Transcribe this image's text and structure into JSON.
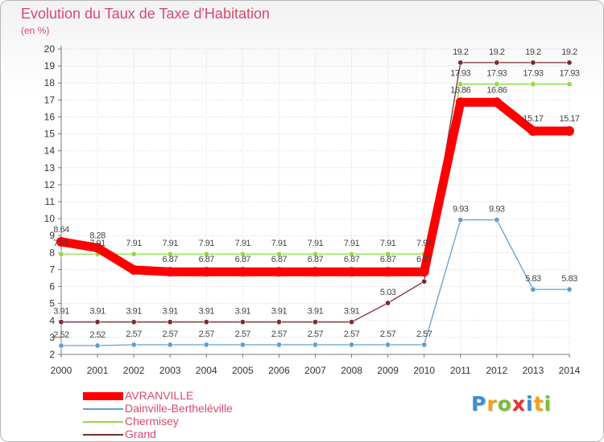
{
  "chart_data": {
    "type": "line",
    "title": "Evolution du Taux de Taxe d'Habitation",
    "subtitle": "(en %)",
    "categories": [
      "2000",
      "2001",
      "2002",
      "2003",
      "2004",
      "2005",
      "2006",
      "2007",
      "2008",
      "2009",
      "2010",
      "2011",
      "2012",
      "2013",
      "2014"
    ],
    "ylim": [
      2,
      20
    ],
    "yticks": [
      2,
      3,
      4,
      5,
      6,
      7,
      8,
      9,
      10,
      11,
      12,
      13,
      14,
      15,
      16,
      17,
      18,
      19,
      20
    ],
    "grid": true,
    "legend_position": "bottom-left",
    "series": [
      {
        "name": "AVRANVILLE",
        "color": "#ff0000",
        "values": [
          8.64,
          8.28,
          6.98,
          6.87,
          6.87,
          6.87,
          6.87,
          6.87,
          6.87,
          6.87,
          6.87,
          16.86,
          16.86,
          15.17,
          15.17
        ],
        "labels": [
          "8.64",
          "8.28",
          "",
          "6.87",
          "6.87",
          "6.87",
          "6.87",
          "6.87",
          "6.87",
          "6.87",
          "6.87",
          "16.86",
          "16.86",
          "15.17",
          "15.17"
        ]
      },
      {
        "name": "Dainville-Bertheléville",
        "color": "#5f9fd2",
        "values": [
          2.52,
          2.52,
          2.57,
          2.57,
          2.57,
          2.57,
          2.57,
          2.57,
          2.57,
          2.57,
          2.57,
          9.93,
          9.93,
          5.83,
          5.83
        ],
        "labels": [
          "2.52",
          "2.52",
          "2.57",
          "2.57",
          "2.57",
          "2.57",
          "2.57",
          "2.57",
          "2.57",
          "2.57",
          "2.57",
          "9.93",
          "9.93",
          "5.83",
          "5.83"
        ]
      },
      {
        "name": "Chermisey",
        "color": "#8edb47",
        "values": [
          7.91,
          7.91,
          7.91,
          7.91,
          7.91,
          7.91,
          7.91,
          7.91,
          7.91,
          7.91,
          7.91,
          17.93,
          17.93,
          17.93,
          17.93
        ],
        "labels": [
          "7.91",
          "7.91",
          "7.91",
          "7.91",
          "7.91",
          "7.91",
          "7.91",
          "7.91",
          "7.91",
          "7.91",
          "7.91",
          "17.93",
          "17.93",
          "17.93",
          "17.93"
        ]
      },
      {
        "name": "Grand",
        "color": "#7b2c33",
        "values": [
          3.91,
          3.91,
          3.91,
          3.91,
          3.91,
          3.91,
          3.91,
          3.91,
          3.91,
          5.03,
          6.3,
          19.2,
          19.2,
          19.2,
          19.2
        ],
        "labels": [
          "3.91",
          "3.91",
          "3.91",
          "3.91",
          "3.91",
          "3.91",
          "3.91",
          "3.91",
          "3.91",
          "5.03",
          "",
          "19.2",
          "19.2",
          "19.2",
          "19.2"
        ]
      }
    ]
  },
  "logo": {
    "text": "Proxiti",
    "letters": [
      {
        "ch": "P",
        "color": "#3a8fd0"
      },
      {
        "ch": "r",
        "color": "#f2a51a"
      },
      {
        "ch": "o",
        "color": "#79bd3a"
      },
      {
        "ch": "x",
        "color": "#e2342c"
      },
      {
        "ch": "i",
        "color": "#3a8fd0"
      },
      {
        "ch": "t",
        "color": "#f2a51a"
      },
      {
        "ch": "i",
        "color": "#79bd3a"
      }
    ]
  }
}
